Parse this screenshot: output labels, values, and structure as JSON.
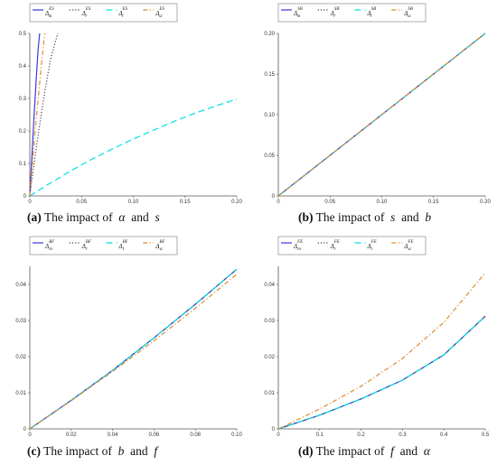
{
  "chart_data": [
    {
      "type": "line",
      "caption": {
        "tag": "(a)",
        "text": "The impact of",
        "var1": "α",
        "and": "and",
        "var2": "s"
      },
      "xlim": [
        0,
        0.2
      ],
      "ylim": [
        0,
        0.5
      ],
      "xticks": [
        0,
        0.05,
        0.1,
        0.15,
        0.2
      ],
      "xtick_labels": [
        "0",
        "0.05",
        "0.10",
        "0.15",
        "0.20"
      ],
      "yticks": [
        0,
        0.1,
        0.2,
        0.3,
        0.4,
        0.5
      ],
      "ytick_labels": [
        "0",
        "0.1",
        "0.2",
        "0.3",
        "0.4",
        "0.5"
      ],
      "series": [
        {
          "name": "Δ_m^ES",
          "color": "#3a3ad8",
          "dash": "solid",
          "x": [
            0,
            0.002,
            0.004,
            0.006,
            0.008,
            0.0095
          ],
          "y": [
            0,
            0.12,
            0.24,
            0.35,
            0.45,
            0.5
          ]
        },
        {
          "name": "Δ_r^ES",
          "color": "#444455",
          "dash": "dot",
          "x": [
            0,
            0.005,
            0.01,
            0.015,
            0.02,
            0.027
          ],
          "y": [
            0,
            0.12,
            0.23,
            0.33,
            0.42,
            0.5
          ]
        },
        {
          "name": "Δ_l^ES",
          "color": "#00e0e8",
          "dash": "dash",
          "x": [
            0,
            0.02,
            0.04,
            0.06,
            0.08,
            0.1,
            0.12,
            0.14,
            0.16,
            0.18,
            0.2
          ],
          "y": [
            0,
            0.04,
            0.078,
            0.113,
            0.145,
            0.175,
            0.203,
            0.23,
            0.255,
            0.277,
            0.298
          ]
        },
        {
          "name": "Δ_sc^ES",
          "color": "#e08a30",
          "dash": "dashdot",
          "x": [
            0,
            0.003,
            0.006,
            0.009,
            0.012,
            0.0145
          ],
          "y": [
            0,
            0.12,
            0.23,
            0.33,
            0.43,
            0.5
          ]
        }
      ]
    },
    {
      "type": "line",
      "caption": {
        "tag": "(b)",
        "text": "The impact of",
        "var1": "s",
        "and": "and",
        "var2": "b"
      },
      "xlim": [
        0,
        0.2
      ],
      "ylim": [
        0,
        0.2
      ],
      "xticks": [
        0,
        0.05,
        0.1,
        0.15,
        0.2
      ],
      "xtick_labels": [
        "0",
        "0.05",
        "0.10",
        "0.15",
        "0.20"
      ],
      "yticks": [
        0,
        0.05,
        0.1,
        0.15,
        0.2
      ],
      "ytick_labels": [
        "0",
        "0.05",
        "0.10",
        "0.15",
        "0.20"
      ],
      "series": [
        {
          "name": "Δ_m^SB",
          "color": "#3a3ad8",
          "dash": "solid",
          "x": [
            0,
            0.2
          ],
          "y": [
            0,
            0.2
          ]
        },
        {
          "name": "Δ_r^SB",
          "color": "#444455",
          "dash": "dot",
          "x": [
            0,
            0.2
          ],
          "y": [
            0,
            0.2
          ]
        },
        {
          "name": "Δ_l^SB",
          "color": "#00e0e8",
          "dash": "dash",
          "x": [
            0,
            0.2
          ],
          "y": [
            0,
            0.2
          ]
        },
        {
          "name": "Δ_sc^SB",
          "color": "#e08a30",
          "dash": "dashdot",
          "x": [
            0,
            0.2
          ],
          "y": [
            0,
            0.2
          ]
        }
      ]
    },
    {
      "type": "line",
      "caption": {
        "tag": "(c)",
        "text": "The impact of",
        "var1": "b",
        "and": "and",
        "var2": "f"
      },
      "xlim": [
        0,
        0.1
      ],
      "ylim": [
        0,
        0.045
      ],
      "xticks": [
        0,
        0.02,
        0.04,
        0.06,
        0.08,
        0.1
      ],
      "xtick_labels": [
        "0",
        "0.02",
        "0.04",
        "0.06",
        "0.08",
        "0.10"
      ],
      "yticks": [
        0,
        0.01,
        0.02,
        0.03,
        0.04
      ],
      "ytick_labels": [
        "0",
        "0.01",
        "0.02",
        "0.03",
        "0.04"
      ],
      "series": [
        {
          "name": "Δ_m^BF",
          "color": "#3a3ad8",
          "dash": "solid",
          "x": [
            0,
            0.02,
            0.04,
            0.06,
            0.08,
            0.1
          ],
          "y": [
            0,
            0.0079,
            0.0162,
            0.0252,
            0.0345,
            0.0442
          ]
        },
        {
          "name": "Δ_r^BF",
          "color": "#444455",
          "dash": "dot",
          "x": [
            0,
            0.02,
            0.04,
            0.06,
            0.08,
            0.1
          ],
          "y": [
            0,
            0.0079,
            0.0162,
            0.0252,
            0.0345,
            0.0442
          ]
        },
        {
          "name": "Δ_l^BF",
          "color": "#00e0e8",
          "dash": "dash",
          "x": [
            0,
            0.02,
            0.04,
            0.06,
            0.08,
            0.1
          ],
          "y": [
            0,
            0.0079,
            0.0162,
            0.0252,
            0.0345,
            0.0442
          ]
        },
        {
          "name": "Δ_sc^BF",
          "color": "#e08a30",
          "dash": "dashdot",
          "x": [
            0,
            0.02,
            0.04,
            0.06,
            0.08,
            0.1
          ],
          "y": [
            0,
            0.0078,
            0.0159,
            0.0244,
            0.0334,
            0.0428
          ]
        }
      ]
    },
    {
      "type": "line",
      "caption": {
        "tag": "(d)",
        "text": "The impact of",
        "var1": "f",
        "and": "and",
        "var2": "α"
      },
      "xlim": [
        0,
        0.5
      ],
      "ylim": [
        0,
        0.045
      ],
      "xticks": [
        0,
        0.1,
        0.2,
        0.3,
        0.4,
        0.5
      ],
      "xtick_labels": [
        "0",
        "0.1",
        "0.2",
        "0.3",
        "0.4",
        "0.5"
      ],
      "yticks": [
        0,
        0.01,
        0.02,
        0.03,
        0.04
      ],
      "ytick_labels": [
        "0",
        "0.01",
        "0.02",
        "0.03",
        "0.04"
      ],
      "series": [
        {
          "name": "Δ_m^FE",
          "color": "#3a3ad8",
          "dash": "solid",
          "x": [
            0,
            0.1,
            0.2,
            0.3,
            0.4,
            0.5
          ],
          "y": [
            0,
            0.0038,
            0.0083,
            0.0135,
            0.0205,
            0.0312
          ]
        },
        {
          "name": "Δ_r^FE",
          "color": "#444455",
          "dash": "dot",
          "x": [
            0,
            0.1,
            0.2,
            0.3,
            0.4,
            0.5
          ],
          "y": [
            0,
            0.0038,
            0.0083,
            0.0135,
            0.0205,
            0.0312
          ]
        },
        {
          "name": "Δ_l^FE",
          "color": "#00e0e8",
          "dash": "dash",
          "x": [
            0,
            0.1,
            0.2,
            0.3,
            0.4,
            0.5
          ],
          "y": [
            0,
            0.0038,
            0.0083,
            0.0135,
            0.0205,
            0.0312
          ]
        },
        {
          "name": "Δ_sc^FE",
          "color": "#e08a30",
          "dash": "dashdot",
          "x": [
            0,
            0.1,
            0.2,
            0.3,
            0.4,
            0.5
          ],
          "y": [
            0,
            0.0055,
            0.0118,
            0.0195,
            0.0295,
            0.0432
          ]
        }
      ]
    }
  ]
}
